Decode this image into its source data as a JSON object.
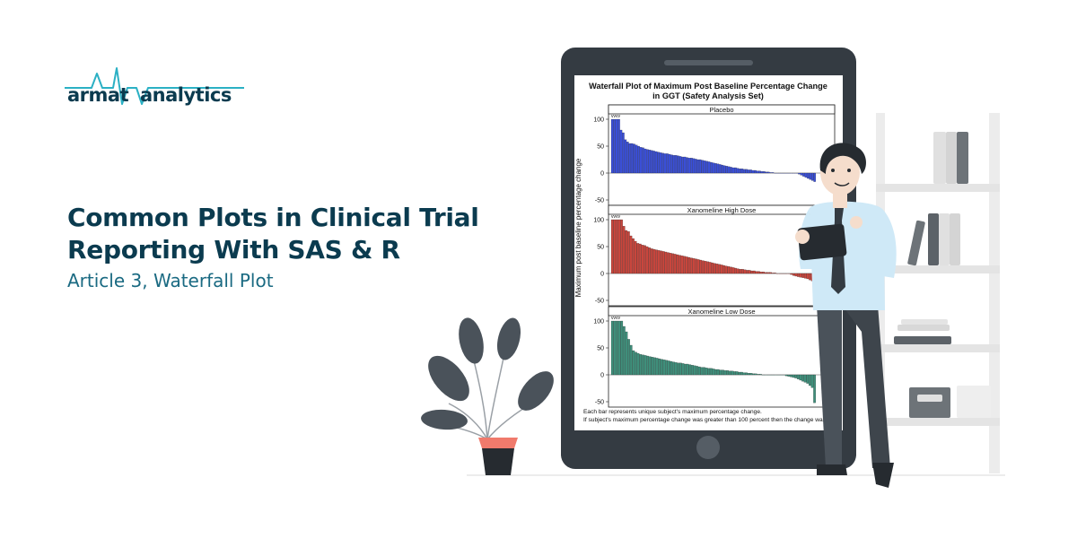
{
  "brand": {
    "logo_word_1": "armat",
    "logo_word_2": "analytics",
    "logo_icon": "heartbeat-line-icon",
    "accent_color": "#2bb0c4",
    "dark_color": "#0b3b4f"
  },
  "headline": {
    "title_line_1": "Common Plots in Clinical Trial",
    "title_line_2": "Reporting With SAS & R",
    "subtitle": "Article 3, Waterfall Plot"
  },
  "chart_data": {
    "type": "bar",
    "title_line_1": "Waterfall Plot of Maximum Post Baseline Percentage Change",
    "title_line_2": "in GGT (Safety Analysis Set)",
    "ylabel": "Maximum post baseline percentage change",
    "xlabel": "",
    "ylim": [
      -60,
      110
    ],
    "yticks": [
      "100",
      "50",
      "0",
      "-50"
    ],
    "grid": false,
    "capped_marker": "vvvv",
    "footnote_1": "Each bar represents unique subject's maximum percentage change.",
    "footnote_2": "If subject's maximum percentage change was greater than 100 percent then the change was",
    "panels": [
      {
        "name": "Placebo",
        "color": "#3a4fd8",
        "values": [
          100,
          100,
          100,
          100,
          80,
          75,
          62,
          58,
          55,
          55,
          54,
          52,
          50,
          48,
          47,
          45,
          44,
          43,
          42,
          41,
          40,
          39,
          38,
          37,
          36,
          36,
          35,
          34,
          33,
          33,
          32,
          31,
          30,
          30,
          29,
          28,
          28,
          27,
          26,
          25,
          25,
          24,
          23,
          22,
          21,
          20,
          19,
          18,
          17,
          16,
          15,
          14,
          13,
          12,
          11,
          10,
          10,
          9,
          8,
          8,
          7,
          7,
          6,
          6,
          5,
          5,
          4,
          4,
          3,
          3,
          2,
          2,
          1,
          1,
          0,
          0,
          0,
          0,
          0,
          0,
          0,
          0,
          0,
          0,
          0,
          -2,
          -4,
          -6,
          -8,
          -10,
          -12,
          -14,
          -16
        ]
      },
      {
        "name": "Xanomeline High Dose",
        "color": "#c9463d",
        "values": [
          100,
          100,
          100,
          100,
          100,
          88,
          80,
          78,
          70,
          65,
          60,
          56,
          55,
          53,
          52,
          50,
          48,
          46,
          45,
          44,
          43,
          42,
          41,
          40,
          39,
          38,
          37,
          36,
          35,
          34,
          33,
          32,
          31,
          30,
          29,
          28,
          27,
          26,
          25,
          24,
          23,
          22,
          21,
          20,
          19,
          18,
          17,
          16,
          15,
          14,
          13,
          12,
          11,
          10,
          9,
          8,
          8,
          7,
          6,
          6,
          5,
          5,
          4,
          4,
          3,
          3,
          2,
          2,
          2,
          1,
          1,
          0,
          0,
          0,
          0,
          0,
          0,
          -2,
          -4,
          -5,
          -6,
          -7,
          -8,
          -9,
          -10,
          -12,
          -14,
          -16
        ]
      },
      {
        "name": "Xanomeline Low Dose",
        "color": "#3f8f7b",
        "values": [
          100,
          100,
          100,
          100,
          100,
          90,
          80,
          66,
          55,
          45,
          42,
          40,
          38,
          37,
          36,
          35,
          34,
          33,
          32,
          31,
          30,
          29,
          28,
          27,
          26,
          25,
          24,
          23,
          22,
          22,
          21,
          20,
          20,
          19,
          18,
          17,
          16,
          15,
          14,
          14,
          13,
          12,
          12,
          11,
          10,
          10,
          9,
          9,
          8,
          8,
          7,
          7,
          6,
          6,
          5,
          5,
          4,
          4,
          3,
          3,
          2,
          2,
          1,
          1,
          0,
          0,
          0,
          0,
          0,
          0,
          0,
          0,
          0,
          0,
          -2,
          -3,
          -4,
          -5,
          -6,
          -8,
          -10,
          -12,
          -14,
          -16,
          -20,
          -24,
          -52
        ]
      }
    ]
  }
}
